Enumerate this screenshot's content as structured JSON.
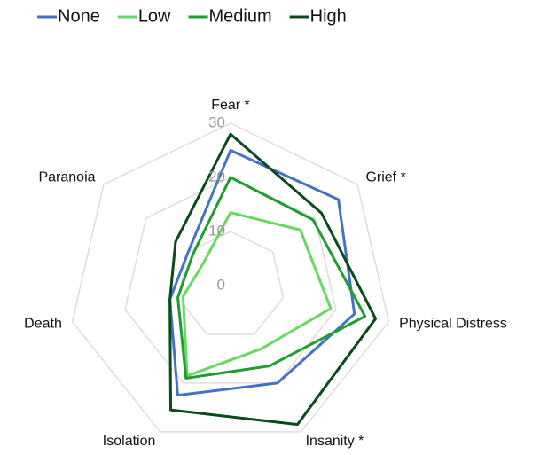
{
  "chart_data": {
    "type": "radar",
    "categories": [
      "Fear *",
      "Grief *",
      "Physical Distress",
      "Insanity *",
      "Isolation",
      "Death",
      "Paranoia"
    ],
    "series": [
      {
        "name": "None",
        "color": "#4472c4",
        "values": [
          25,
          25.5,
          23.5,
          20,
          22.5,
          11.5,
          10
        ]
      },
      {
        "name": "Low",
        "color": "#66d960",
        "values": [
          13.5,
          16.5,
          19,
          13,
          18.5,
          9,
          6.5
        ]
      },
      {
        "name": "Medium",
        "color": "#1f9e2e",
        "values": [
          20,
          19.5,
          25.5,
          16.5,
          19,
          10,
          9
        ]
      },
      {
        "name": "High",
        "color": "#0a4a1c",
        "values": [
          28,
          21.5,
          27.5,
          28.5,
          25.5,
          11.5,
          13
        ]
      }
    ],
    "ylim": [
      0,
      30
    ],
    "yticks": [
      0,
      10,
      20,
      30
    ],
    "grid": true,
    "legend": "top"
  }
}
